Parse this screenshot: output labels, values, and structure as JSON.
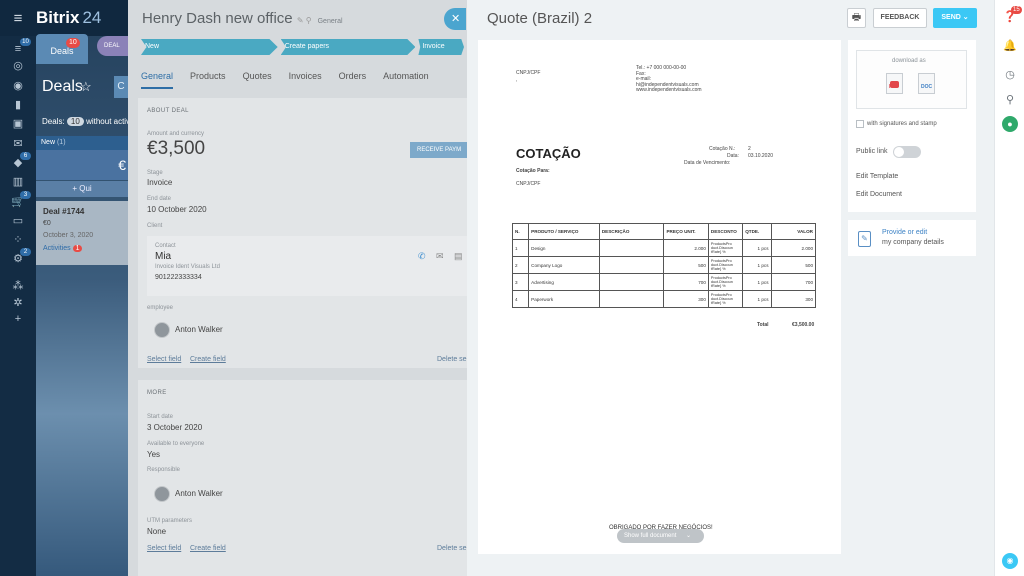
{
  "brand": {
    "name": "Bitrix",
    "version": "24"
  },
  "left_nav": {
    "badges": [
      "10",
      "6",
      "3",
      "2"
    ]
  },
  "deals_page": {
    "tab_label": "Deals",
    "tab_badge": "10",
    "pill_label": "DEAL",
    "title": "Deals",
    "count_prefix": "Deals:",
    "count": "10",
    "count_suffix": "without activi",
    "button_letter": "C",
    "column_name": "New",
    "column_count": "(1)",
    "column_sum": "€",
    "quick_add": "+ Qui",
    "card": {
      "title": "Deal #1744",
      "amount": "€0",
      "date": "October 3, 2020",
      "activities_label": "Activities",
      "activities_count": "1"
    }
  },
  "deal": {
    "title": "Henry Dash new  office",
    "category": "General",
    "stages": [
      "New",
      "Create papers",
      "Invoice"
    ],
    "tabs": [
      "General",
      "Products",
      "Quotes",
      "Invoices",
      "Orders",
      "Automation"
    ],
    "about_label": "ABOUT DEAL",
    "amount_label": "Amount and currency",
    "amount": "€3,500",
    "receive_payment": "RECEIVE PAYM",
    "stage_label": "Stage",
    "stage_value": "Invoice",
    "end_date_label": "End date",
    "end_date_value": "10 October 2020",
    "client_label": "Client",
    "contact_label": "Contact",
    "contact_name": "Mia",
    "contact_company": "Invoice Ident Visuals Ltd",
    "contact_phone": "901222333334",
    "employee_label": "employee",
    "employee_name": "Anton Walker",
    "select_field": "Select field",
    "create_field": "Create field",
    "delete_section": "Delete se",
    "more_label": "MORE",
    "start_date_label": "Start date",
    "start_date_value": "3 October 2020",
    "available_label": "Available to everyone",
    "available_value": "Yes",
    "responsible_label": "Responsible",
    "responsible_name": "Anton Walker",
    "utm_label": "UTM parameters",
    "utm_value": "None",
    "select_field_2": "Select field",
    "create_field_2": "Create field",
    "delete_section_2": "Delete se"
  },
  "quote": {
    "title": "Quote (Brazil) 2",
    "feedback": "FEEDBACK",
    "send": "SEND",
    "doc": {
      "cnpj_top": "CNPJ/CPF",
      "contact_lines": [
        "Tel.: +7 000 000-00-00",
        "Fax:",
        "e-mail:",
        "hi@independentvisuals.com",
        "www.independentvisuals.com"
      ],
      "heading": "COTAÇÃO",
      "cotacao_no_label": "Cotação N.:",
      "cotacao_no": "2",
      "data_label": "Data:",
      "data_value": "03.10.2020",
      "vencimento_label": "Data de Vencimento:",
      "para_label": "Cotação Para:",
      "cnpj_bottom": "CNPJ/CPF",
      "table": {
        "headers": [
          "N.",
          "PRODUTO / SERVIÇO",
          "DESCRIÇÃO",
          "PREÇO UNIT.",
          "DESCONTO",
          "QTDE.",
          "VALOR"
        ],
        "rows": [
          {
            "n": "1",
            "product": "Design",
            "description": "",
            "price": "2.000",
            "discount": "ProductsPro duct.Discoun tRate} %",
            "qty": "1 pcs",
            "value": "2.000"
          },
          {
            "n": "2",
            "product": "Company Logo",
            "description": "",
            "price": "500",
            "discount": "ProductsPro duct.Discoun tRate} %",
            "qty": "1 pcs",
            "value": "500"
          },
          {
            "n": "3",
            "product": "Advertising",
            "description": "",
            "price": "700",
            "discount": "ProductsPro duct.Discoun tRate} %",
            "qty": "1 pcs",
            "value": "700"
          },
          {
            "n": "4",
            "product": "Paperwork",
            "description": "",
            "price": "300",
            "discount": "ProductsPro duct.Discoun tRate} %",
            "qty": "1 pcs",
            "value": "300"
          }
        ],
        "total_label": "Total",
        "total_value": "€3,500.00"
      },
      "footer": "OBRIGADO POR FAZER NEGÓCIOS!"
    },
    "show_full": "Show full document",
    "download_label": "download as",
    "pdf_label": "PDF",
    "doc_label": "DOC",
    "signatures_label": "with signatures and stamp",
    "public_link": "Public link",
    "edit_template": "Edit Template",
    "edit_document": "Edit Document",
    "provide_line1": "Provide or edit",
    "provide_line2": "my company details"
  },
  "right_rail": {
    "badge": "15"
  }
}
